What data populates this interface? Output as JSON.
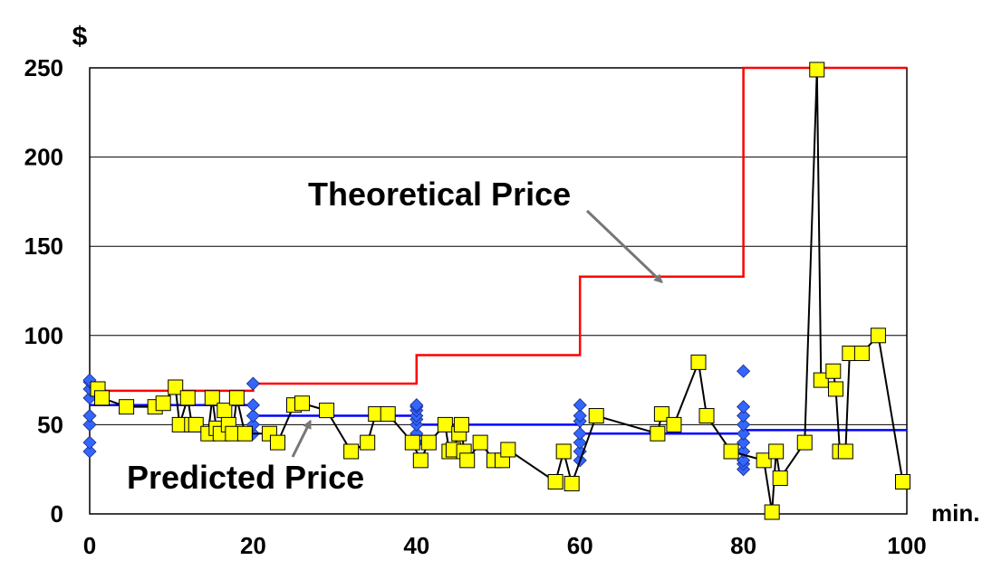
{
  "chart_data": {
    "type": "line",
    "title": "",
    "xlabel": "min.",
    "ylabel": "$",
    "xlim": [
      0,
      100
    ],
    "ylim": [
      0,
      250
    ],
    "x_ticks": [
      "0",
      "20",
      "40",
      "60",
      "80",
      "100"
    ],
    "y_ticks": [
      "0",
      "50",
      "100",
      "150",
      "200",
      "250"
    ],
    "grid": true,
    "colors": {
      "theoretical": "#ff0000",
      "predicted": "#0000ff",
      "observed_line": "#000000",
      "observed_marker": "#ffff00",
      "bid_marker": "#3366ff"
    },
    "annotations": [
      {
        "label": "Theoretical Price",
        "target_series": "theoretical",
        "target": [
          70,
          133
        ]
      },
      {
        "label": "Predicted Price",
        "target_series": "predicted",
        "target": [
          27,
          55
        ]
      }
    ],
    "series": [
      {
        "key": "theoretical",
        "style": "step",
        "x": [
          0,
          20,
          20,
          40,
          40,
          60,
          60,
          80,
          80,
          100
        ],
        "y": [
          69,
          69,
          73,
          73,
          89,
          89,
          133,
          133,
          250,
          250
        ]
      },
      {
        "key": "predicted",
        "style": "step",
        "x": [
          0,
          20,
          20,
          40,
          40,
          60,
          60,
          80,
          80,
          100
        ],
        "y": [
          61,
          61,
          55,
          55,
          50,
          50,
          45,
          45,
          47,
          47
        ]
      },
      {
        "key": "observed",
        "style": "line-square",
        "x": [
          1,
          1.5,
          4.5,
          8,
          9,
          10.5,
          11,
          12,
          12.5,
          13,
          14.5,
          15,
          15.5,
          16,
          16.5,
          17,
          17.5,
          18,
          19,
          22,
          23,
          25,
          26,
          29,
          32,
          34,
          35,
          36.5,
          39.5,
          40.5,
          41.5,
          43.5,
          44,
          44.5,
          45.2,
          45.5,
          45.8,
          46.2,
          47.8,
          49.5,
          50.5,
          51.2,
          57,
          58,
          59,
          62,
          69.5,
          70,
          71.5,
          74.5,
          75.5,
          78.5,
          82.5,
          83.5,
          84,
          84.5,
          87.5,
          89,
          89.5,
          91,
          91.3,
          91.8,
          92.5,
          93,
          94.5,
          96.5,
          99.5
        ],
        "y": [
          70,
          65,
          60,
          60,
          62,
          71,
          50,
          65,
          50,
          50,
          45,
          65,
          48,
          45,
          58,
          50,
          45,
          65,
          45,
          45,
          40,
          61,
          62,
          58,
          35,
          40,
          56,
          56,
          40,
          30,
          40,
          50,
          35,
          36,
          45,
          50,
          35,
          30,
          40,
          30,
          30,
          36,
          18,
          35,
          17,
          55,
          45,
          56,
          50,
          85,
          55,
          35,
          30,
          1,
          35,
          20,
          40,
          249,
          75,
          80,
          70,
          35,
          35,
          90,
          90,
          100,
          18
        ]
      },
      {
        "key": "bids",
        "style": "diamond",
        "x": [
          0,
          0,
          0,
          0,
          0,
          0,
          0,
          0,
          20,
          20,
          20,
          20,
          20,
          40,
          40,
          40,
          40,
          40,
          40,
          40,
          40,
          60,
          60,
          60,
          60,
          60,
          60,
          60,
          80,
          80,
          80,
          80,
          80,
          80,
          80,
          80,
          80,
          80
        ],
        "y": [
          35,
          40,
          50,
          55,
          65,
          70,
          74,
          75,
          45,
          50,
          55,
          61,
          73,
          40,
          45,
          50,
          53,
          55,
          58,
          60,
          61,
          30,
          35,
          40,
          45,
          52,
          55,
          61,
          25,
          28,
          30,
          35,
          40,
          45,
          50,
          55,
          60,
          80
        ]
      }
    ]
  }
}
